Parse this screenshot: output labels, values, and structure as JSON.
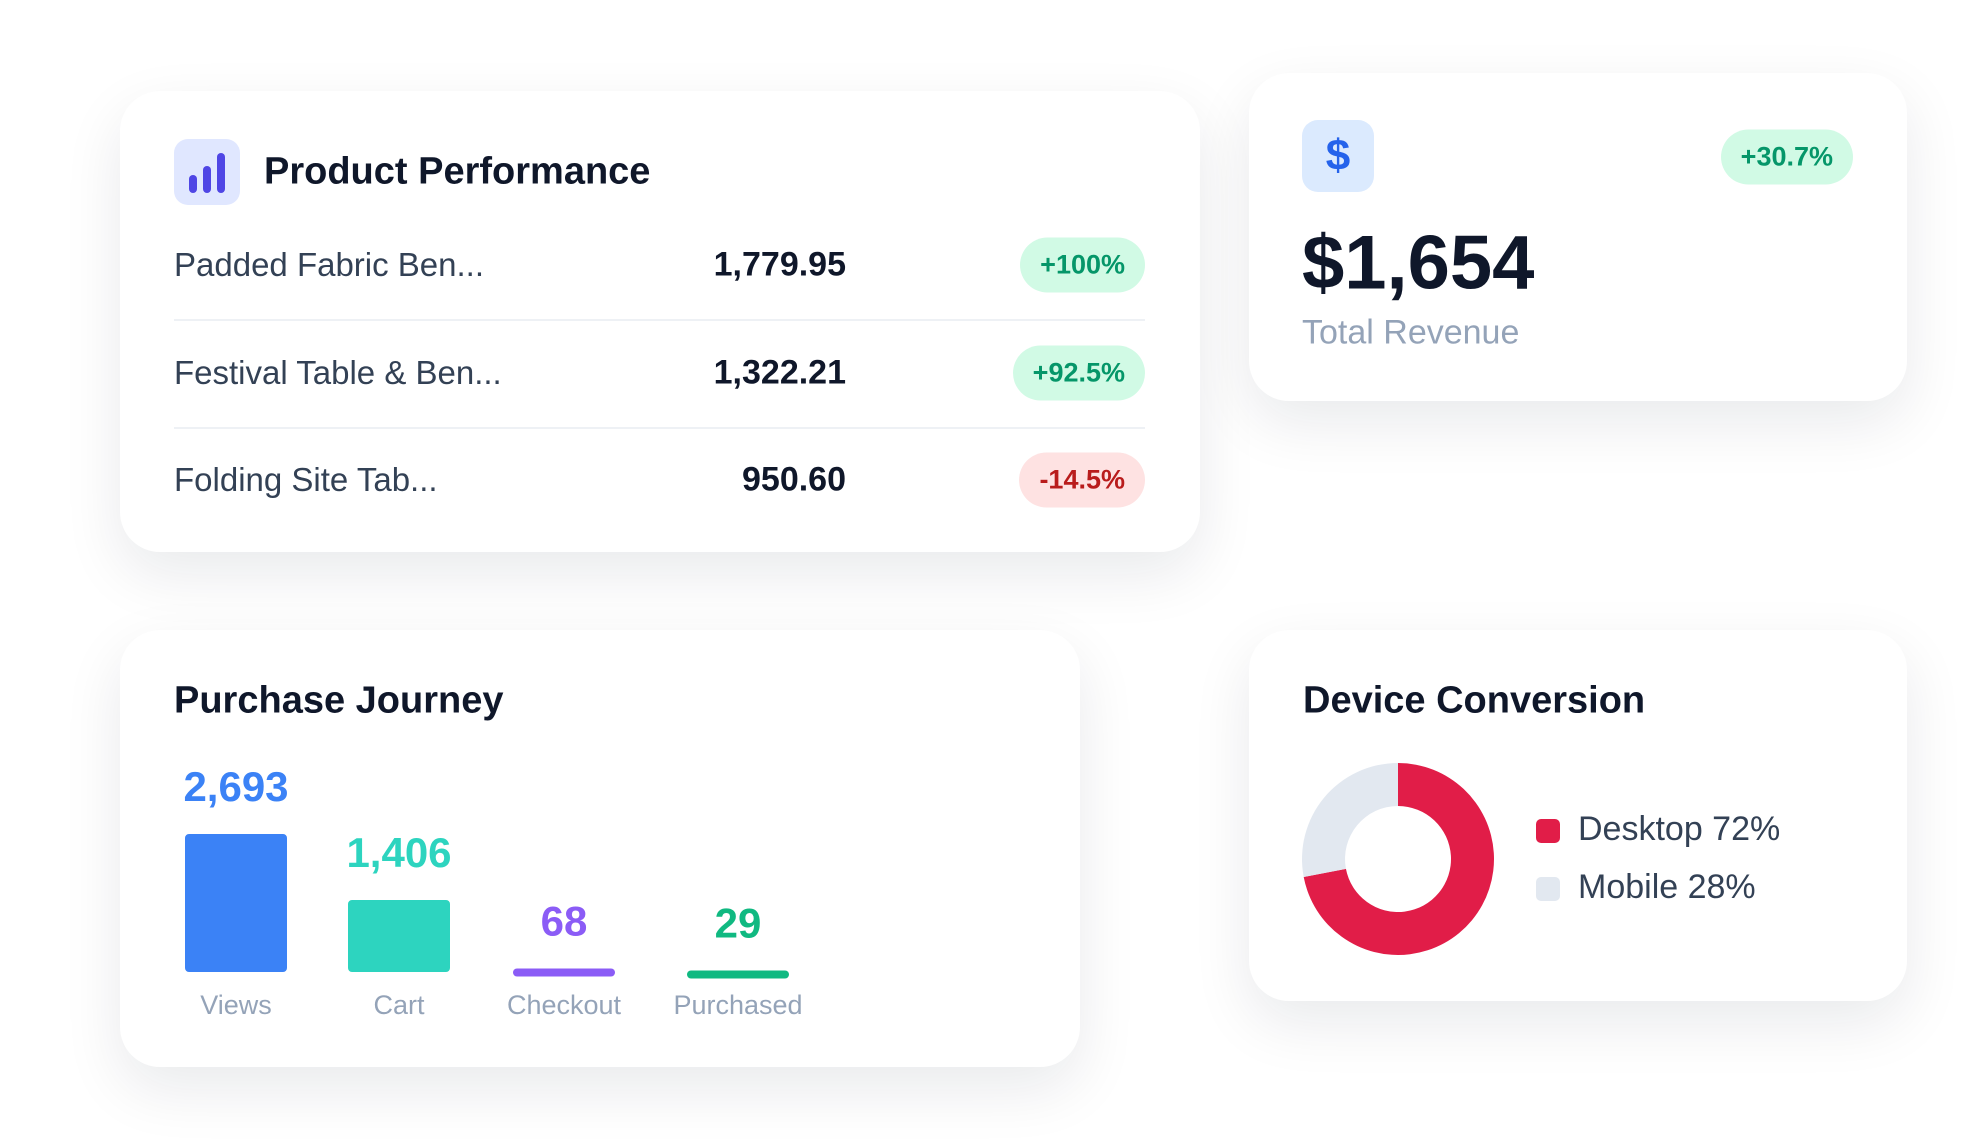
{
  "product_performance": {
    "title": "Product Performance",
    "rows": [
      {
        "name": "Padded Fabric Ben...",
        "value": "1,779.95",
        "change": "+100%"
      },
      {
        "name": "Festival Table & Ben...",
        "value": "1,322.21",
        "change": "+92.5%"
      },
      {
        "name": "Folding Site Tab...",
        "value": "950.60",
        "change": "-14.5%"
      }
    ]
  },
  "revenue": {
    "icon": "$",
    "change": "+30.7%",
    "value": "$1,654",
    "label": "Total Revenue"
  },
  "purchase_journey": {
    "type": "bar",
    "title": "Purchase Journey",
    "categories": [
      "Views",
      "Cart",
      "Checkout",
      "Purchased"
    ],
    "values": [
      2693,
      1406,
      68,
      29
    ],
    "value_labels": [
      "2,693",
      "1,406",
      "68",
      "29"
    ],
    "colors": [
      "#3b82f6",
      "#2dd4bf",
      "#8b5cf6",
      "#10b981"
    ]
  },
  "device_conversion": {
    "type": "donut",
    "title": "Device Conversion",
    "values": [
      72,
      28
    ],
    "value_labels": [
      "Desktop 72%",
      "Mobile 28%"
    ],
    "colors": [
      "#e11d48",
      "#e2e8f0"
    ]
  }
}
